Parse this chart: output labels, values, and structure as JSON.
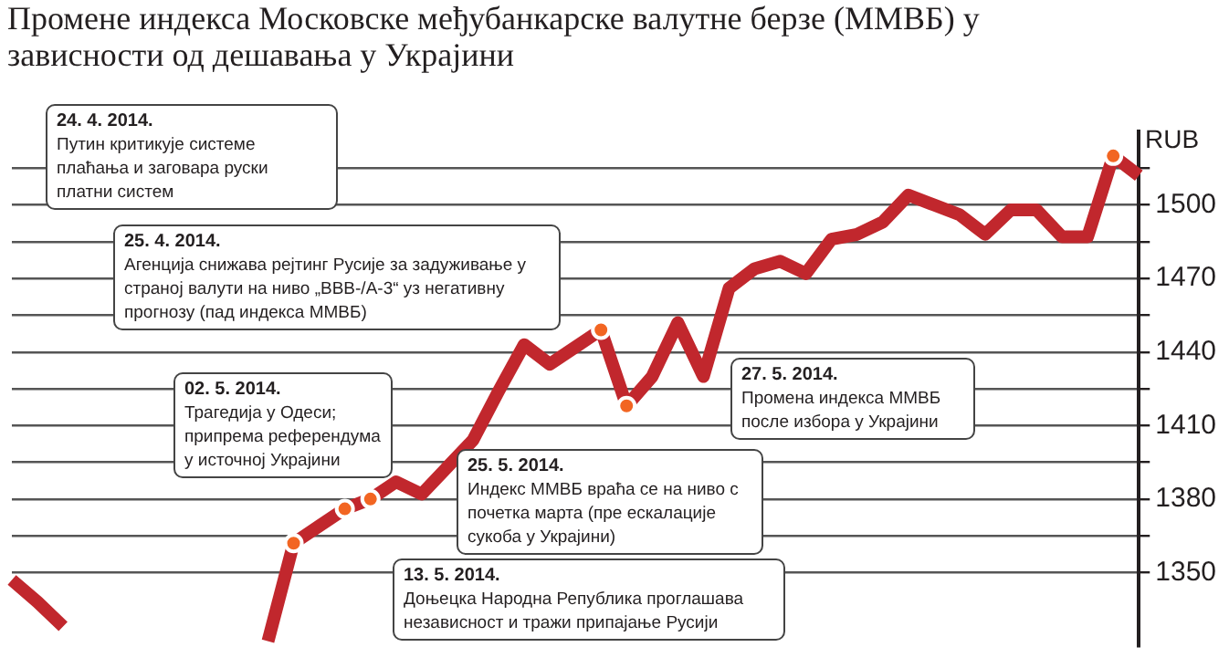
{
  "chart_data": {
    "type": "line",
    "title": "Промене индекса Московске међубанкарске валутне берзе (ММВБ) у зависности од дешавања у Украјини",
    "ylabel": "RUB",
    "categories": [
      null,
      null,
      null,
      null,
      null,
      null,
      null,
      null,
      null,
      null,
      null,
      null,
      null,
      null,
      null,
      null,
      null,
      null,
      null,
      null,
      null,
      null,
      null,
      null,
      null,
      null,
      null,
      null,
      null,
      null,
      null,
      null,
      null,
      null,
      null,
      null,
      null,
      null,
      null,
      null,
      null,
      null,
      null,
      null,
      null
    ],
    "ylim": [
      1320,
      1530
    ],
    "yticks": [
      1350,
      {
        "value": 1365,
        "label": null
      },
      1380,
      {
        "value": 1395,
        "label": null
      },
      1410,
      {
        "value": 1425,
        "label": null
      },
      1440,
      {
        "value": 1455,
        "label": null
      },
      1470,
      {
        "value": 1485,
        "label": null
      },
      1500,
      {
        "value": 1515,
        "label": null
      }
    ],
    "grid": "y",
    "tick_labels": "y",
    "series": [
      {
        "color": "#c1272d",
        "values": [
          1347,
          1338,
          1328,
          null,
          null,
          null,
          null,
          null,
          null,
          null,
          null,
          null,
          null,
          null,
          null,
          null,
          null,
          null,
          null,
          null,
          null,
          null,
          null,
          null,
          null,
          null,
          null,
          null,
          null,
          null,
          null,
          null,
          null,
          null,
          null,
          null,
          null,
          null,
          null,
          null,
          null,
          null,
          null,
          null,
          null
        ]
      },
      {
        "color": "#c1272d",
        "values": [
          null,
          null,
          null,
          null,
          null,
          null,
          null,
          null,
          null,
          null,
          1322,
          1362,
          1369,
          1376,
          1380,
          1387,
          1382,
          1393,
          1404,
          1424,
          1443,
          1435,
          1442,
          1449,
          1418,
          1430,
          1452,
          1430,
          1466,
          1474,
          1477,
          1472,
          1486,
          1488,
          1493,
          1504,
          1500,
          1496,
          1488,
          1498,
          1498,
          1487,
          1487,
          1520,
          1512
        ]
      },
      {
        "type": "scatter",
        "color": "#f26522",
        "marker": "circle",
        "values": [
          null,
          null,
          null,
          null,
          null,
          null,
          null,
          null,
          null,
          null,
          null,
          1362,
          null,
          1376,
          1380,
          null,
          null,
          null,
          null,
          null,
          null,
          null,
          null,
          1449,
          1418,
          null,
          null,
          null,
          null,
          null,
          null,
          null,
          null,
          null,
          null,
          null,
          null,
          null,
          null,
          null,
          null,
          null,
          null,
          1520,
          null
        ]
      }
    ],
    "annotations": [
      "24. 4. 2014.\nПутин критикује системе плаћања и заговара руски платни систем",
      "25. 4. 2014.\nАгенција снижава рејтинг Русије за задуживање у страној валути на ниво „BBB-/A-3“ уз негативну прогнозу (пад индекса ММВБ)",
      "02. 5. 2014.\nТрагедија у Одеси; припрема референдума у источној Украјини",
      "13. 5. 2014.\nДоњецка Народна Република проглашава независност и тражи припајање Русији",
      "25. 5. 2014.\nИндекс ММВБ враћа се на ниво с почетка марта (пре ескалације сукоба у Украјини)",
      "27. 5. 2014.\nПромена индекса ММВБ после избора у Украјини"
    ]
  }
}
